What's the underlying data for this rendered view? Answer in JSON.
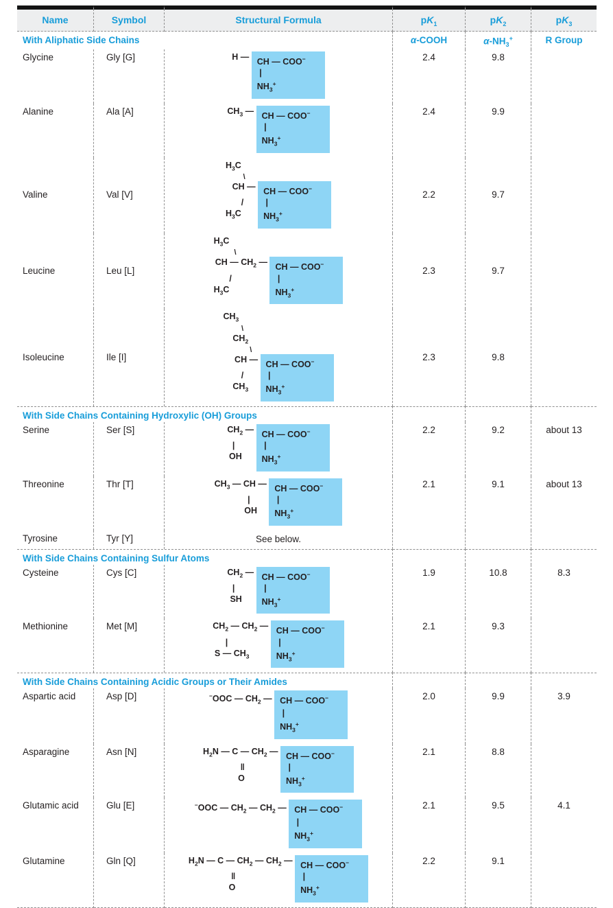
{
  "palette": {
    "accent_blue": "#189dd9",
    "highlight_blue": "#8ed5f5",
    "header_bg": "#edeeef",
    "dash_gray": "#8f8f8f",
    "text_ink": "#231f20",
    "top_bar": "#141414"
  },
  "header": {
    "columns": [
      "Name",
      "Symbol",
      "Structural Formula",
      "p*K*_1_",
      "p*K*_2_",
      "p*K*_3_"
    ]
  },
  "sections": [
    {
      "title": "With Aliphatic Side Chains",
      "subheads": [
        "*α*-COOH",
        "*α*-NH_3_^+^",
        "R Group"
      ],
      "rows": [
        {
          "name": "Glycine",
          "symbol": "Gly [G]",
          "pk1": "2.4",
          "pk2": "9.8",
          "pk3": "",
          "valign": "top",
          "structure": [
            {
              "l": "H — ",
              "b": "CH — COO^−^"
            },
            {
              "l": "",
              "b": " |"
            },
            {
              "l": "",
              "b": "NH_3_^+^"
            }
          ]
        },
        {
          "name": "Alanine",
          "symbol": "Ala [A]",
          "pk1": "2.4",
          "pk2": "9.9",
          "pk3": "",
          "valign": "top",
          "structure": [
            {
              "l": "CH_3_ — ",
              "b": "CH — COO^−^"
            },
            {
              "l": "",
              "b": " |"
            },
            {
              "l": "",
              "b": "NH_3_^+^"
            }
          ]
        },
        {
          "name": "Valine",
          "symbol": "Val [V]",
          "pk1": "2.2",
          "pk2": "9.7",
          "pk3": "",
          "valign": "center",
          "structure": [
            {
              "l": "H_3_C       ",
              "b": null
            },
            {
              "l": "\\      ",
              "b": null,
              "diag": true
            },
            {
              "l": "CH — ",
              "b": "CH — COO^−^"
            },
            {
              "l": "/      ",
              "b": " |"
            },
            {
              "l": "H_3_C       ",
              "b": "NH_3_^+^"
            }
          ]
        },
        {
          "name": "Leucine",
          "symbol": "Leu [L]",
          "pk1": "2.3",
          "pk2": "9.7",
          "pk3": "",
          "valign": "center",
          "structure": [
            {
              "l": "H_3_C                 ",
              "b": null
            },
            {
              "l": "\\                ",
              "b": null,
              "diag": true
            },
            {
              "l": "CH — CH_2_ — ",
              "b": "CH — COO^−^"
            },
            {
              "l": "/                ",
              "b": " |"
            },
            {
              "l": "H_3_C                 ",
              "b": "NH_3_^+^"
            }
          ]
        },
        {
          "name": "Isoleucine",
          "symbol": "Ile [I]",
          "pk1": "2.3",
          "pk2": "9.8",
          "pk3": "",
          "valign": "center",
          "structure": [
            {
              "l": "CH_3_         ",
              "b": null
            },
            {
              "l": "\\        ",
              "b": null,
              "diag": true
            },
            {
              "l": "CH_2_     ",
              "b": null
            },
            {
              "l": "\\    ",
              "b": null,
              "diag": true
            },
            {
              "l": "CH — ",
              "b": "CH — COO^−^"
            },
            {
              "l": "/       ",
              "b": " |"
            },
            {
              "l": "CH_3_     ",
              "b": "NH_3_^+^"
            }
          ]
        }
      ]
    },
    {
      "title": "With Side Chains Containing Hydroxylic (OH) Groups",
      "subheads": null,
      "rows": [
        {
          "name": "Serine",
          "symbol": "Ser [S]",
          "pk1": "2.2",
          "pk2": "9.2",
          "pk3": "about 13",
          "valign": "top",
          "structure": [
            {
              "l": "CH_2_ — ",
              "b": "CH — COO^−^"
            },
            {
              "l": "|         ",
              "b": " |"
            },
            {
              "l": "OH      ",
              "b": "NH_3_^+^"
            }
          ]
        },
        {
          "name": "Threonine",
          "symbol": "Thr [T]",
          "pk1": "2.1",
          "pk2": "9.1",
          "pk3": "about 13",
          "valign": "top",
          "structure": [
            {
              "l": "CH_3_ — CH — ",
              "b": "CH — COO^−^"
            },
            {
              "l": "|        ",
              "b": " |"
            },
            {
              "l": "OH     ",
              "b": "NH_3_^+^"
            }
          ]
        },
        {
          "name": "Tyrosine",
          "symbol": "Tyr [Y]",
          "pk1": "",
          "pk2": "",
          "pk3": "",
          "valign": "top",
          "note": "See below."
        }
      ]
    },
    {
      "title": "With Side Chains Containing Sulfur Atoms",
      "subheads": null,
      "rows": [
        {
          "name": "Cysteine",
          "symbol": "Cys [C]",
          "pk1": "1.9",
          "pk2": "10.8",
          "pk3": "8.3",
          "valign": "top",
          "structure": [
            {
              "l": "CH_2_ — ",
              "b": "CH — COO^−^"
            },
            {
              "l": "|         ",
              "b": " |"
            },
            {
              "l": "SH      ",
              "b": "NH_3_^+^"
            }
          ]
        },
        {
          "name": "Methionine",
          "symbol": "Met [M]",
          "pk1": "2.1",
          "pk2": "9.3",
          "pk3": "",
          "valign": "top",
          "structure": [
            {
              "l": "CH_2_ — CH_2_ — ",
              "b": "CH — COO^−^"
            },
            {
              "l": "|                  ",
              "b": " |"
            },
            {
              "l": "S — CH_3_         ",
              "b": "NH_3_^+^"
            }
          ]
        }
      ]
    },
    {
      "title": "With Side Chains Containing Acidic Groups or Their Amides",
      "subheads": null,
      "rows": [
        {
          "name": "Aspartic acid",
          "symbol": "Asp [D]",
          "pk1": "2.0",
          "pk2": "9.9",
          "pk3": "3.9",
          "valign": "top",
          "structure": [
            {
              "l": "^−^OOC — CH_2_ — ",
              "b": "CH — COO^−^"
            },
            {
              "l": "",
              "b": " |"
            },
            {
              "l": "",
              "b": "NH_3_^+^"
            }
          ]
        },
        {
          "name": "Asparagine",
          "symbol": "Asn [N]",
          "pk1": "2.1",
          "pk2": "8.8",
          "pk3": "",
          "valign": "top",
          "structure": [
            {
              "l": "H_2_N — C — CH_2_ — ",
              "b": "CH — COO^−^"
            },
            {
              "l": "‖               ",
              "b": " |"
            },
            {
              "l": "O               ",
              "b": "NH_3_^+^"
            }
          ]
        },
        {
          "name": "Glutamic acid",
          "symbol": "Glu [E]",
          "pk1": "2.1",
          "pk2": "9.5",
          "pk3": "4.1",
          "valign": "top",
          "structure": [
            {
              "l": "^−^OOC — CH_2_ — CH_2_ — ",
              "b": "CH — COO^−^"
            },
            {
              "l": "",
              "b": " |"
            },
            {
              "l": "",
              "b": "NH_3_^+^"
            }
          ]
        },
        {
          "name": "Glutamine",
          "symbol": "Gln [Q]",
          "pk1": "2.2",
          "pk2": "9.1",
          "pk3": "",
          "valign": "top",
          "structure": [
            {
              "l": "H_2_N — C — CH_2_ — CH_2_ — ",
              "b": "CH — COO^−^"
            },
            {
              "l": "‖                         ",
              "b": " |"
            },
            {
              "l": "O                         ",
              "b": "NH_3_^+^"
            }
          ]
        }
      ]
    }
  ]
}
